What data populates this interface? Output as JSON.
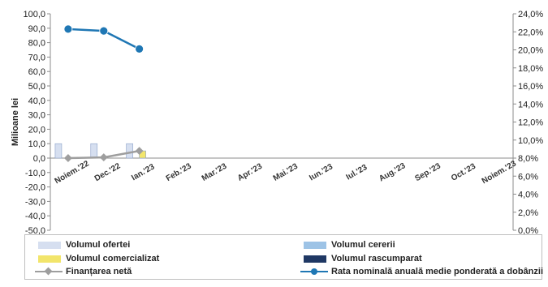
{
  "chart_data": {
    "type": "bar",
    "categories": [
      "Noiem.'22",
      "Dec.'22",
      "Ian.'23",
      "Feb.'23",
      "Mar.'23",
      "Apr.'23",
      "Mai.'23",
      "Iun.'23",
      "Iul.'23",
      "Aug.'23",
      "Sep.'23",
      "Oct.'23",
      "Noiem.'23"
    ],
    "ylabel": "Milioane lei",
    "ylim": [
      -50,
      100
    ],
    "y_ticks": [
      "100,0",
      "90,0",
      "80,0",
      "70,0",
      "60,0",
      "50,0",
      "40,0",
      "30,0",
      "20,0",
      "10,0",
      "0,0",
      "-10,0",
      "-20,0",
      "-30,0",
      "-40,0",
      "-50,0"
    ],
    "y2lim": [
      0,
      24
    ],
    "y2_ticks": [
      "24,0%",
      "22,0%",
      "20,0%",
      "18,0%",
      "16,0%",
      "14,0%",
      "12,0%",
      "10,0%",
      "8,0%",
      "6,0%",
      "4,0%",
      "2,0%",
      "0,0%"
    ],
    "grid": false,
    "legend_position": "bottom",
    "series": [
      {
        "name": "Volumul ofertei",
        "kind": "bar",
        "axis": "left",
        "color": "#d6dff0",
        "values": [
          10.0,
          10.0,
          10.0,
          null,
          null,
          null,
          null,
          null,
          null,
          null,
          null,
          null,
          null
        ]
      },
      {
        "name": "Volumul cererii",
        "kind": "bar",
        "axis": "left",
        "color": "#9dc3e6",
        "values": [
          null,
          null,
          null,
          null,
          null,
          null,
          null,
          null,
          null,
          null,
          null,
          null,
          null
        ]
      },
      {
        "name": "Volumul comercializat",
        "kind": "bar",
        "axis": "left",
        "color": "#f2e56b",
        "values": [
          null,
          null,
          5.0,
          null,
          null,
          null,
          null,
          null,
          null,
          null,
          null,
          null,
          null
        ]
      },
      {
        "name": "Volumul rascumparat",
        "kind": "bar",
        "axis": "left",
        "color": "#1f3864",
        "values": [
          null,
          null,
          null,
          null,
          null,
          null,
          null,
          null,
          null,
          null,
          null,
          null,
          null
        ]
      },
      {
        "name": "Finanțarea netă",
        "kind": "line",
        "axis": "left",
        "color": "#9e9e9e",
        "values": [
          0.0,
          0.5,
          5.0,
          null,
          null,
          null,
          null,
          null,
          null,
          null,
          null,
          null,
          null
        ]
      },
      {
        "name": "Rata nominală anuală medie ponderată a dobânzii",
        "kind": "line",
        "axis": "right",
        "color": "#1f77b4",
        "values": [
          22.3,
          22.1,
          20.1,
          null,
          null,
          null,
          null,
          null,
          null,
          null,
          null,
          null,
          null
        ]
      }
    ]
  }
}
